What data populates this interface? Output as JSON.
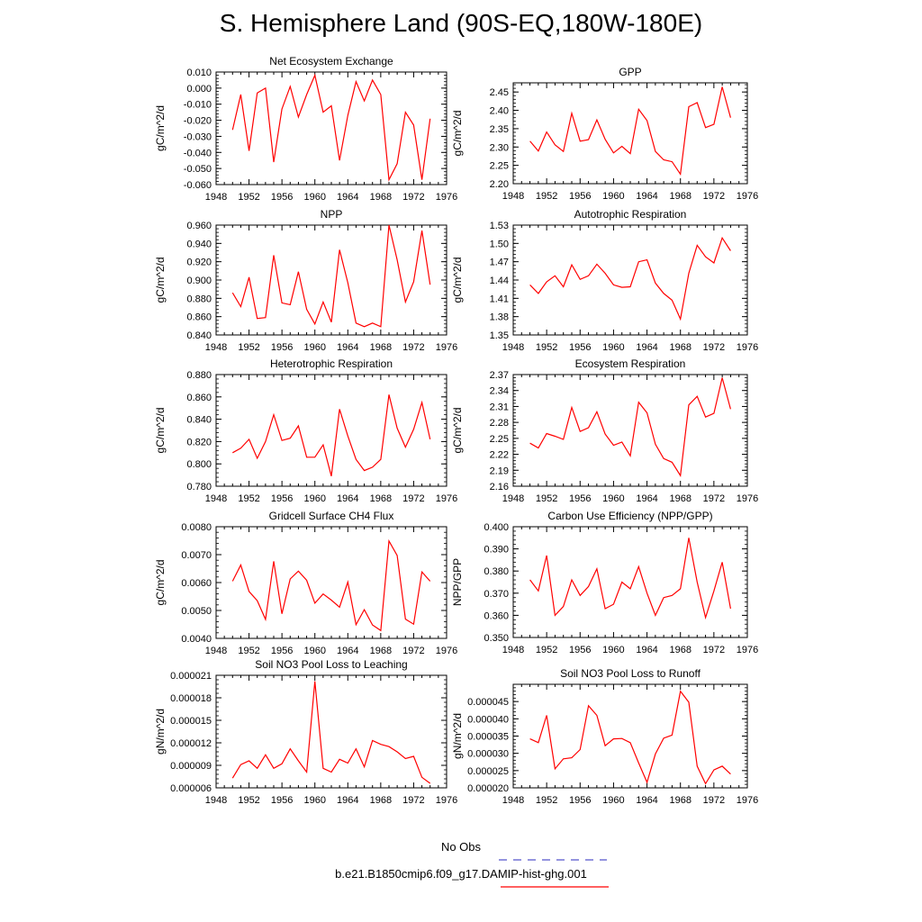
{
  "title": "S. Hemisphere Land (90S-EQ,180W-180E)",
  "colors": {
    "series": "#ff0000",
    "obs": "#5555cc"
  },
  "legend": {
    "obs_label": "No Obs",
    "model_label": "b.e21.B1850cmip6.f09_g17.DAMIP-hist-ghg.001"
  },
  "chart_data": [
    {
      "type": "line",
      "title": "Net Ecosystem Exchange",
      "ylabel": "gC/m^2/d",
      "xlim": [
        1948,
        1976
      ],
      "ylim": [
        -0.06,
        0.01
      ],
      "yticks": [
        "0.010",
        "0.000",
        "-0.010",
        "-0.020",
        "-0.030",
        "-0.040",
        "-0.050",
        "-0.060"
      ],
      "xticks": [
        "1948",
        "1952",
        "1956",
        "1960",
        "1964",
        "1968",
        "1972",
        "1976"
      ],
      "x": [
        1950,
        1951,
        1952,
        1953,
        1954,
        1955,
        1956,
        1957,
        1958,
        1959,
        1960,
        1961,
        1962,
        1963,
        1964,
        1965,
        1966,
        1967,
        1968,
        1969,
        1970,
        1971,
        1972,
        1973,
        1974
      ],
      "values": [
        -0.026,
        -0.004,
        -0.039,
        -0.003,
        0.0,
        -0.046,
        -0.013,
        0.001,
        -0.018,
        -0.004,
        0.008,
        -0.015,
        -0.011,
        -0.045,
        -0.017,
        0.004,
        -0.008,
        0.005,
        -0.004,
        -0.057,
        -0.047,
        -0.015,
        -0.023,
        -0.057,
        -0.019
      ]
    },
    {
      "type": "line",
      "title": "GPP",
      "ylabel": "gC/m^2/d",
      "xlim": [
        1948,
        1976
      ],
      "ylim": [
        2.2,
        2.475
      ],
      "yticks": [
        "2.45",
        "2.40",
        "2.35",
        "2.30",
        "2.25",
        "2.20"
      ],
      "xticks": [
        "1948",
        "1952",
        "1956",
        "1960",
        "1964",
        "1968",
        "1972",
        "1976"
      ],
      "x": [
        1950,
        1951,
        1952,
        1953,
        1954,
        1955,
        1956,
        1957,
        1958,
        1959,
        1960,
        1961,
        1962,
        1963,
        1964,
        1965,
        1966,
        1967,
        1968,
        1969,
        1970,
        1971,
        1972,
        1973,
        1974
      ],
      "values": [
        2.316,
        2.289,
        2.341,
        2.306,
        2.288,
        2.392,
        2.316,
        2.32,
        2.374,
        2.321,
        2.284,
        2.302,
        2.282,
        2.403,
        2.372,
        2.288,
        2.265,
        2.26,
        2.226,
        2.41,
        2.421,
        2.353,
        2.362,
        2.464,
        2.38
      ]
    },
    {
      "type": "line",
      "title": "NPP",
      "ylabel": "gC/m^2/d",
      "xlim": [
        1948,
        1976
      ],
      "ylim": [
        0.84,
        0.96
      ],
      "yticks": [
        "0.960",
        "0.940",
        "0.920",
        "0.900",
        "0.880",
        "0.860",
        "0.840"
      ],
      "xticks": [
        "1948",
        "1952",
        "1956",
        "1960",
        "1964",
        "1968",
        "1972",
        "1976"
      ],
      "x": [
        1950,
        1951,
        1952,
        1953,
        1954,
        1955,
        1956,
        1957,
        1958,
        1959,
        1960,
        1961,
        1962,
        1963,
        1964,
        1965,
        1966,
        1967,
        1968,
        1969,
        1970,
        1971,
        1972,
        1973,
        1974
      ],
      "values": [
        0.886,
        0.871,
        0.903,
        0.858,
        0.859,
        0.927,
        0.875,
        0.873,
        0.909,
        0.868,
        0.852,
        0.876,
        0.854,
        0.933,
        0.897,
        0.853,
        0.849,
        0.853,
        0.849,
        0.96,
        0.922,
        0.876,
        0.898,
        0.954,
        0.895
      ]
    },
    {
      "type": "line",
      "title": "Autotrophic Respiration",
      "ylabel": "gC/m^2/d",
      "xlim": [
        1948,
        1976
      ],
      "ylim": [
        1.35,
        1.53
      ],
      "yticks": [
        "1.53",
        "1.50",
        "1.47",
        "1.44",
        "1.41",
        "1.38",
        "1.35"
      ],
      "xticks": [
        "1948",
        "1952",
        "1956",
        "1960",
        "1964",
        "1968",
        "1972",
        "1976"
      ],
      "x": [
        1950,
        1951,
        1952,
        1953,
        1954,
        1955,
        1956,
        1957,
        1958,
        1959,
        1960,
        1961,
        1962,
        1963,
        1964,
        1965,
        1966,
        1967,
        1968,
        1969,
        1970,
        1971,
        1972,
        1973,
        1974
      ],
      "values": [
        1.432,
        1.418,
        1.437,
        1.447,
        1.429,
        1.465,
        1.441,
        1.447,
        1.466,
        1.451,
        1.432,
        1.428,
        1.429,
        1.47,
        1.473,
        1.435,
        1.418,
        1.407,
        1.376,
        1.451,
        1.497,
        1.478,
        1.468,
        1.509,
        1.488
      ]
    },
    {
      "type": "line",
      "title": "Heterotrophic Respiration",
      "ylabel": "gC/m^2/d",
      "xlim": [
        1948,
        1976
      ],
      "ylim": [
        0.78,
        0.88
      ],
      "yticks": [
        "0.880",
        "0.860",
        "0.840",
        "0.820",
        "0.800",
        "0.780"
      ],
      "xticks": [
        "1948",
        "1952",
        "1956",
        "1960",
        "1964",
        "1968",
        "1972",
        "1976"
      ],
      "x": [
        1950,
        1951,
        1952,
        1953,
        1954,
        1955,
        1956,
        1957,
        1958,
        1959,
        1960,
        1961,
        1962,
        1963,
        1964,
        1965,
        1966,
        1967,
        1968,
        1969,
        1970,
        1971,
        1972,
        1973,
        1974
      ],
      "values": [
        0.81,
        0.814,
        0.822,
        0.805,
        0.82,
        0.844,
        0.821,
        0.823,
        0.834,
        0.806,
        0.806,
        0.817,
        0.789,
        0.849,
        0.825,
        0.804,
        0.794,
        0.797,
        0.804,
        0.862,
        0.832,
        0.815,
        0.831,
        0.855,
        0.822
      ]
    },
    {
      "type": "line",
      "title": "Ecosystem Respiration",
      "ylabel": "gC/m^2/d",
      "xlim": [
        1948,
        1976
      ],
      "ylim": [
        2.16,
        2.37
      ],
      "yticks": [
        "2.37",
        "2.34",
        "2.31",
        "2.28",
        "2.25",
        "2.22",
        "2.19",
        "2.16"
      ],
      "xticks": [
        "1948",
        "1952",
        "1956",
        "1960",
        "1964",
        "1968",
        "1972",
        "1976"
      ],
      "x": [
        1950,
        1951,
        1952,
        1953,
        1954,
        1955,
        1956,
        1957,
        1958,
        1959,
        1960,
        1961,
        1962,
        1963,
        1964,
        1965,
        1966,
        1967,
        1968,
        1969,
        1970,
        1971,
        1972,
        1973,
        1974
      ],
      "values": [
        2.241,
        2.232,
        2.259,
        2.254,
        2.248,
        2.308,
        2.263,
        2.27,
        2.3,
        2.258,
        2.237,
        2.243,
        2.217,
        2.318,
        2.298,
        2.239,
        2.212,
        2.205,
        2.18,
        2.313,
        2.329,
        2.29,
        2.297,
        2.364,
        2.305
      ]
    },
    {
      "type": "line",
      "title": "Gridcell Surface CH4 Flux",
      "ylabel": "gC/m^2/d",
      "xlim": [
        1948,
        1976
      ],
      "ylim": [
        0.004,
        0.008
      ],
      "yticks": [
        "0.0080",
        "0.0070",
        "0.0060",
        "0.0050",
        "0.0040"
      ],
      "xticks": [
        "1948",
        "1952",
        "1956",
        "1960",
        "1964",
        "1968",
        "1972",
        "1976"
      ],
      "x": [
        1950,
        1951,
        1952,
        1953,
        1954,
        1955,
        1956,
        1957,
        1958,
        1959,
        1960,
        1961,
        1962,
        1963,
        1964,
        1965,
        1966,
        1967,
        1968,
        1969,
        1970,
        1971,
        1972,
        1973,
        1974
      ],
      "values": [
        0.00605,
        0.00663,
        0.00568,
        0.00535,
        0.00468,
        0.00676,
        0.00488,
        0.00613,
        0.00641,
        0.00608,
        0.00526,
        0.00559,
        0.00537,
        0.00512,
        0.00602,
        0.00449,
        0.00503,
        0.00448,
        0.00428,
        0.00749,
        0.00697,
        0.00469,
        0.00451,
        0.00638,
        0.00605
      ]
    },
    {
      "type": "line",
      "title": "Carbon Use Efficiency (NPP/GPP)",
      "ylabel": "NPP/GPP",
      "xlim": [
        1948,
        1976
      ],
      "ylim": [
        0.35,
        0.4
      ],
      "yticks": [
        "0.400",
        "0.390",
        "0.380",
        "0.370",
        "0.360",
        "0.350"
      ],
      "xticks": [
        "1948",
        "1952",
        "1956",
        "1960",
        "1964",
        "1968",
        "1972",
        "1976"
      ],
      "x": [
        1950,
        1951,
        1952,
        1953,
        1954,
        1955,
        1956,
        1957,
        1958,
        1959,
        1960,
        1961,
        1962,
        1963,
        1964,
        1965,
        1966,
        1967,
        1968,
        1969,
        1970,
        1971,
        1972,
        1973,
        1974
      ],
      "values": [
        0.376,
        0.371,
        0.387,
        0.36,
        0.364,
        0.376,
        0.369,
        0.373,
        0.381,
        0.363,
        0.365,
        0.375,
        0.372,
        0.382,
        0.37,
        0.36,
        0.368,
        0.369,
        0.372,
        0.395,
        0.375,
        0.359,
        0.371,
        0.384,
        0.363
      ]
    },
    {
      "type": "line",
      "title": "Soil NO3 Pool Loss to Leaching",
      "ylabel": "gN/m^2/d",
      "xlim": [
        1948,
        1976
      ],
      "ylim": [
        6e-06,
        2.1e-05
      ],
      "yticks": [
        "0.000021",
        "0.000018",
        "0.000015",
        "0.000012",
        "0.000009",
        "0.000006"
      ],
      "xticks": [
        "1948",
        "1952",
        "1956",
        "1960",
        "1964",
        "1968",
        "1972",
        "1976"
      ],
      "x": [
        1950,
        1951,
        1952,
        1953,
        1954,
        1955,
        1956,
        1957,
        1958,
        1959,
        1960,
        1961,
        1962,
        1963,
        1964,
        1965,
        1966,
        1967,
        1968,
        1969,
        1970,
        1971,
        1972,
        1973,
        1974
      ],
      "values": [
        7.3e-06,
        9.1e-06,
        9.6e-06,
        8.6e-06,
        1.04e-05,
        8.6e-06,
        9.2e-06,
        1.12e-05,
        9.6e-06,
        8.1e-06,
        2.02e-05,
        8.6e-06,
        8.1e-06,
        9.8e-06,
        9.3e-06,
        1.12e-05,
        8.8e-06,
        1.23e-05,
        1.18e-05,
        1.15e-05,
        1.08e-05,
        9.9e-06,
        1.02e-05,
        7.4e-06,
        6.6e-06
      ]
    },
    {
      "type": "line",
      "title": "Soil NO3 Pool Loss to Runoff",
      "ylabel": "gN/m^2/d",
      "xlim": [
        1948,
        1976
      ],
      "ylim": [
        2e-05,
        5e-05
      ],
      "yticks": [
        "0.000045",
        "0.000040",
        "0.000035",
        "0.000030",
        "0.000025",
        "0.000020"
      ],
      "xticks": [
        "1948",
        "1952",
        "1956",
        "1960",
        "1964",
        "1968",
        "1972",
        "1976"
      ],
      "x": [
        1950,
        1951,
        1952,
        1953,
        1954,
        1955,
        1956,
        1957,
        1958,
        1959,
        1960,
        1961,
        1962,
        1963,
        1964,
        1965,
        1966,
        1967,
        1968,
        1969,
        1970,
        1971,
        1972,
        1973,
        1974
      ],
      "values": [
        3.42e-05,
        3.31e-05,
        4.1e-05,
        2.55e-05,
        2.84e-05,
        2.87e-05,
        3.11e-05,
        4.38e-05,
        4.1e-05,
        3.22e-05,
        3.42e-05,
        3.43e-05,
        3.31e-05,
        2.72e-05,
        2.16e-05,
        2.98e-05,
        3.44e-05,
        3.53e-05,
        4.8e-05,
        4.48e-05,
        2.63e-05,
        2.12e-05,
        2.52e-05,
        2.63e-05,
        2.4e-05
      ]
    }
  ]
}
